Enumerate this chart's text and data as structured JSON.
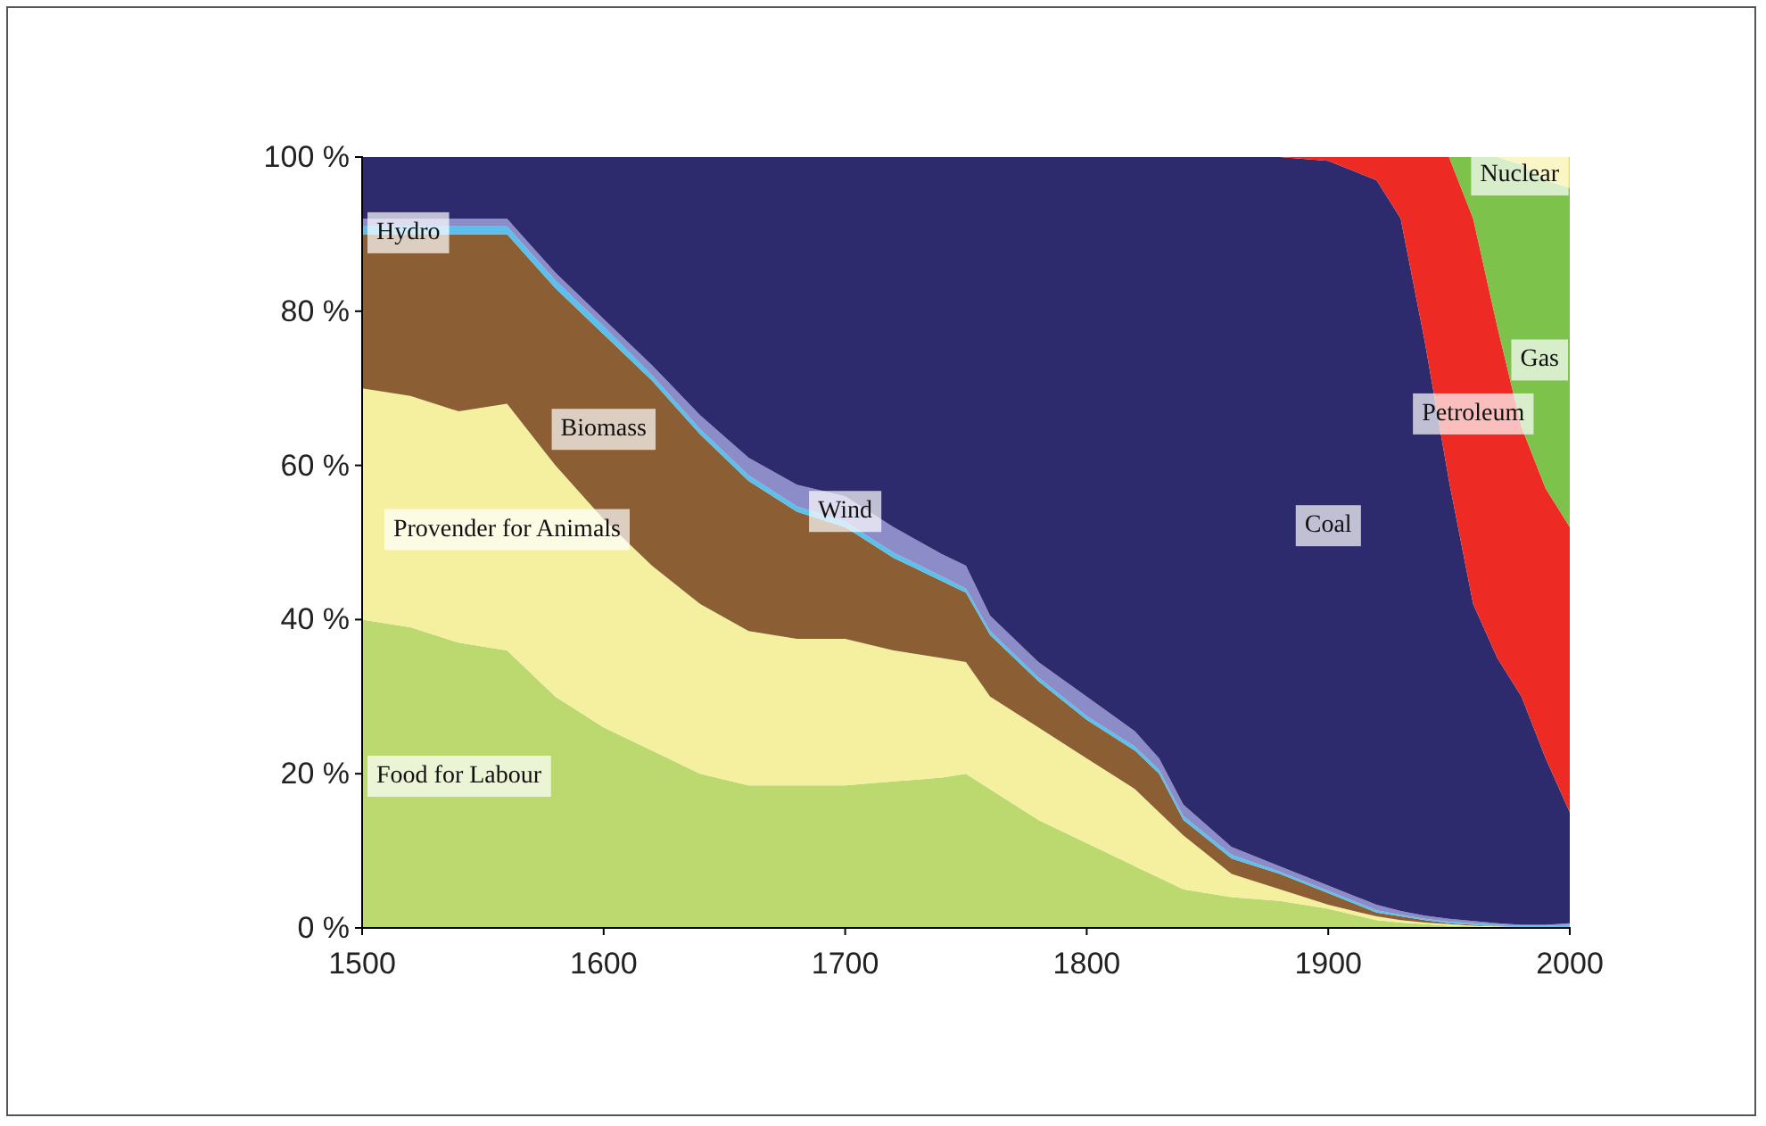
{
  "chart_data": {
    "type": "area",
    "stacked": true,
    "grid": false,
    "x": [
      1500,
      1520,
      1540,
      1560,
      1580,
      1600,
      1620,
      1640,
      1660,
      1680,
      1700,
      1720,
      1740,
      1750,
      1760,
      1780,
      1800,
      1820,
      1830,
      1840,
      1860,
      1880,
      1900,
      1920,
      1930,
      1940,
      1950,
      1960,
      1970,
      1980,
      1990,
      2000
    ],
    "xlim": [
      1500,
      2000
    ],
    "xticks": [
      1500,
      1600,
      1700,
      1800,
      1900,
      2000
    ],
    "ylim": [
      0,
      100
    ],
    "yticks": [
      {
        "value": 0,
        "label": "0 %"
      },
      {
        "value": 20,
        "label": "20 %"
      },
      {
        "value": 40,
        "label": "40 %"
      },
      {
        "value": 60,
        "label": "60 %"
      },
      {
        "value": 80,
        "label": "80 %"
      },
      {
        "value": 100,
        "label": "100 %"
      }
    ],
    "series": [
      {
        "name": "Food for Labour",
        "color": "#bcd96f",
        "values": [
          40,
          39,
          37,
          36,
          30,
          26,
          23,
          20,
          18.5,
          18.5,
          18.5,
          19,
          19.5,
          20,
          18,
          14,
          11,
          8,
          6.5,
          5,
          4,
          3.5,
          2.5,
          1,
          0.7,
          0.5,
          0.3,
          0.2,
          0.1,
          0,
          0,
          0
        ]
      },
      {
        "name": "Provender for Animals",
        "color": "#f5f0a0",
        "values": [
          30,
          30,
          30,
          32,
          30,
          27,
          24,
          22,
          20,
          19,
          19,
          17,
          15.5,
          14.5,
          12,
          12,
          11,
          10,
          8.5,
          7,
          3,
          1.5,
          0.5,
          0.5,
          0.3,
          0.2,
          0.2,
          0.1,
          0.1,
          0,
          0,
          0
        ]
      },
      {
        "name": "Biomass",
        "color": "#8b5e34",
        "values": [
          20,
          21,
          23,
          22,
          23,
          24,
          24,
          22,
          19.5,
          16.5,
          14.5,
          12,
          10,
          9,
          8,
          6,
          5,
          5,
          5,
          2,
          2,
          2,
          1.5,
          0.5,
          0.5,
          0.3,
          0.1,
          0.1,
          0,
          0.1,
          0.1,
          0.1
        ]
      },
      {
        "name": "Hydro",
        "color": "#5bc0eb",
        "values": [
          1,
          1,
          1,
          1,
          1,
          1,
          0.7,
          0.7,
          0.7,
          0.7,
          0.7,
          0.7,
          0.6,
          0.5,
          0.5,
          0.5,
          0.5,
          0.5,
          0.5,
          0.5,
          0.5,
          0.3,
          0.3,
          0.3,
          0.2,
          0.2,
          0.2,
          0.2,
          0.2,
          0.2,
          0.2,
          0.3
        ]
      },
      {
        "name": "Wind",
        "color": "#8c8cc8",
        "values": [
          1,
          1,
          1,
          1,
          1,
          1,
          1.3,
          1.8,
          2.3,
          2.8,
          3.3,
          3.3,
          2.9,
          3,
          2,
          2,
          2.5,
          2,
          1.5,
          1.5,
          1,
          0.7,
          0.7,
          0.7,
          0.5,
          0.4,
          0.4,
          0.3,
          0.2,
          0.1,
          0.1,
          0.2
        ]
      },
      {
        "name": "Coal",
        "color": "#2e2a6e",
        "values": [
          8,
          8,
          8,
          8,
          15,
          21,
          27,
          33.5,
          39,
          42.5,
          44,
          48,
          51.5,
          53,
          59.5,
          65.5,
          70,
          74.5,
          78,
          84,
          89.5,
          92,
          94,
          94,
          89.8,
          74.4,
          56.8,
          41.1,
          34.4,
          29.6,
          21.6,
          14.4
        ]
      },
      {
        "name": "Petroleum",
        "color": "#ee2a24",
        "values": [
          0,
          0,
          0,
          0,
          0,
          0,
          0,
          0,
          0,
          0,
          0,
          0,
          0,
          0,
          0,
          0,
          0,
          0,
          0,
          0,
          0,
          0,
          0.5,
          3,
          8,
          24,
          42,
          50,
          43,
          35,
          35,
          37
        ]
      },
      {
        "name": "Gas",
        "color": "#7dc24b",
        "values": [
          0,
          0,
          0,
          0,
          0,
          0,
          0,
          0,
          0,
          0,
          0,
          0,
          0,
          0,
          0,
          0,
          0,
          0,
          0,
          0,
          0,
          0,
          0,
          0,
          0,
          0,
          0,
          8,
          22,
          34,
          40,
          44
        ]
      },
      {
        "name": "Nuclear",
        "color": "#f0e040",
        "values": [
          0,
          0,
          0,
          0,
          0,
          0,
          0,
          0,
          0,
          0,
          0,
          0,
          0,
          0,
          0,
          0,
          0,
          0,
          0,
          0,
          0,
          0,
          0,
          0,
          0,
          0,
          0,
          0,
          0,
          1,
          3,
          4
        ]
      }
    ]
  }
}
